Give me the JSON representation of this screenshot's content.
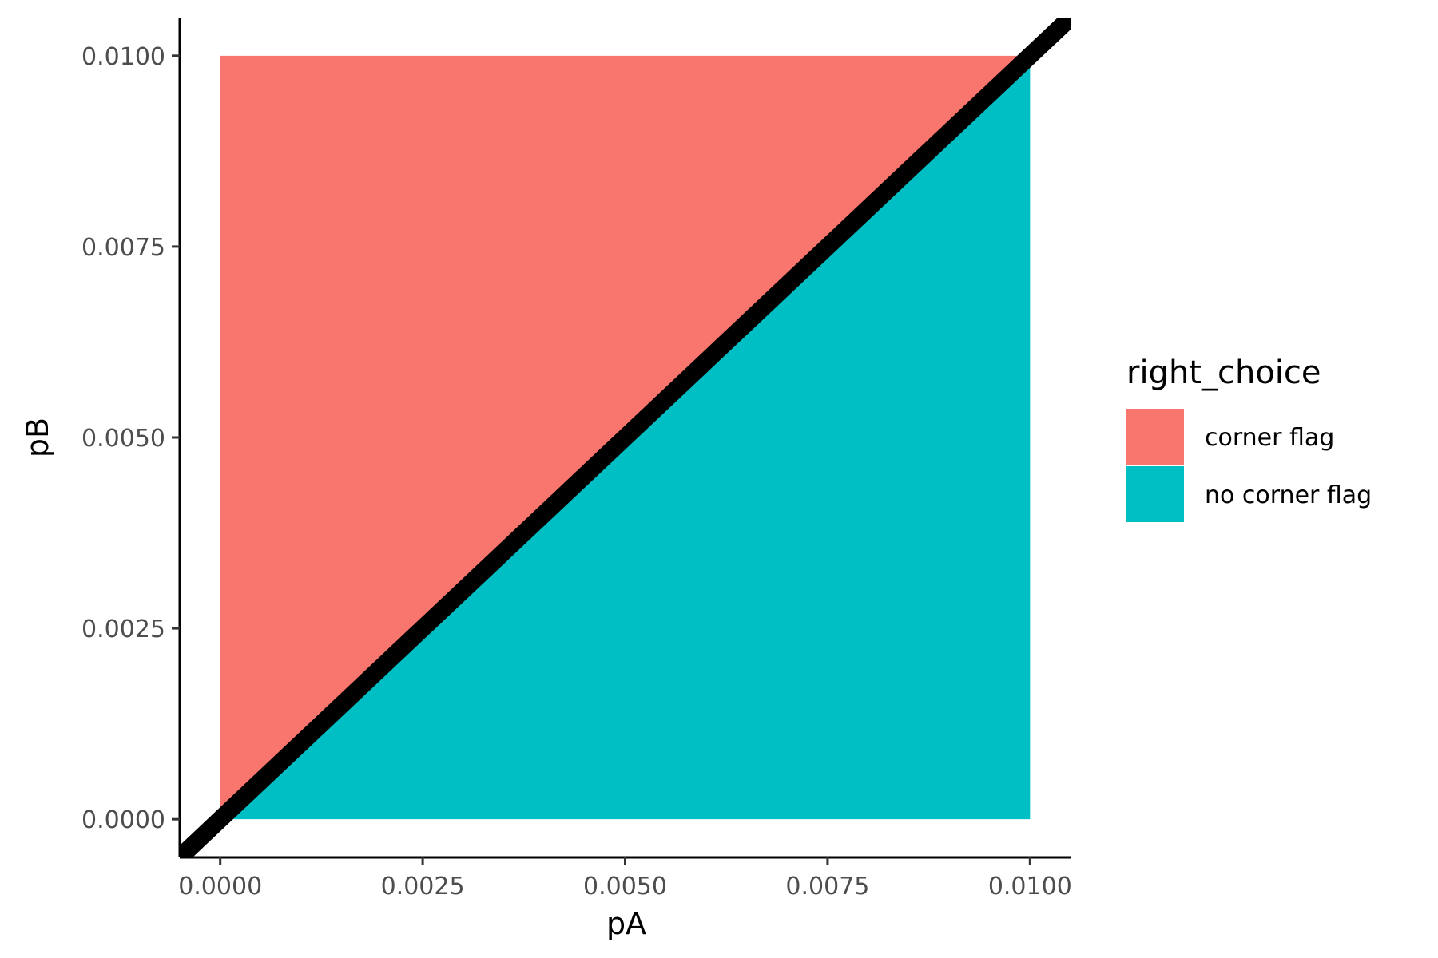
{
  "chart_data": {
    "type": "heatmap",
    "x": {
      "label": "pA",
      "lim": [
        -0.0005,
        0.0105
      ],
      "ticks": [
        0.0,
        0.0025,
        0.005,
        0.0075,
        0.01
      ],
      "tick_labels": [
        "0.0000",
        "0.0025",
        "0.0050",
        "0.0075",
        "0.0100"
      ]
    },
    "y": {
      "label": "pB",
      "lim": [
        -0.0005,
        0.0105
      ],
      "ticks": [
        0.0,
        0.0025,
        0.005,
        0.0075,
        0.01
      ],
      "tick_labels": [
        "0.0000",
        "0.0025",
        "0.0050",
        "0.0075",
        "0.0100"
      ]
    },
    "regions": [
      {
        "name": "corner flag",
        "condition": "pB > pA",
        "color": "#F8766D"
      },
      {
        "name": "no corner flag",
        "condition": "pB < pA",
        "color": "#00BFC4"
      }
    ],
    "tile_extent": {
      "x": [
        0.0,
        0.01
      ],
      "y": [
        0.0,
        0.01
      ]
    },
    "reference_line": {
      "intercept": 0,
      "slope": 1,
      "color": "#000000"
    },
    "legend": {
      "title": "right_choice",
      "position": "right",
      "entries": [
        {
          "label": "corner flag",
          "color": "#F8766D"
        },
        {
          "label": "no corner flag",
          "color": "#00BFC4"
        }
      ]
    },
    "grid": false
  }
}
